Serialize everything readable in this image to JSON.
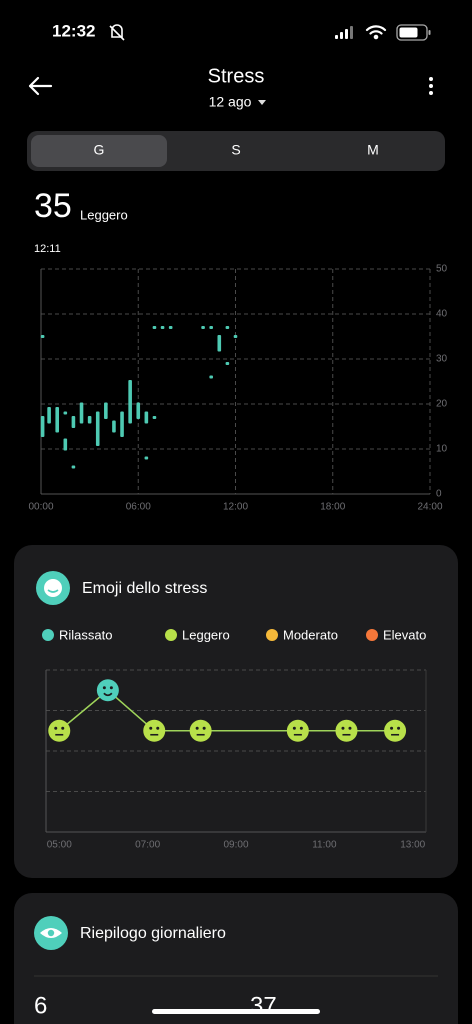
{
  "status_bar": {
    "time": "12:32"
  },
  "header": {
    "title": "Stress",
    "date": "12 ago"
  },
  "tabs": [
    "G",
    "S",
    "M"
  ],
  "current": {
    "value": 35,
    "level": "Leggero",
    "time": "12:11"
  },
  "chart_data": [
    {
      "type": "range_bar",
      "color": "#4ecab3",
      "grid": true,
      "x": [
        0.1,
        0.1,
        0.5,
        1.0,
        1.5,
        1.5,
        2.0,
        2.0,
        2.5,
        3.0,
        3.5,
        4.0,
        4.5,
        5.0,
        5.5,
        6.0,
        6.5,
        6.5,
        7.0,
        7.0,
        7.5,
        8.0,
        10.0,
        10.5,
        10.5,
        11.0,
        11.5,
        11.5,
        12.0
      ],
      "min": [
        35,
        13,
        16,
        14,
        10,
        18,
        6,
        15,
        16,
        16,
        11,
        17,
        14,
        13,
        16,
        17,
        16,
        8,
        17,
        37,
        37,
        37,
        37,
        37,
        26,
        32,
        37,
        29,
        35
      ],
      "max": [
        35,
        17,
        19,
        19,
        12,
        18,
        6,
        17,
        20,
        17,
        18,
        20,
        16,
        18,
        25,
        20,
        18,
        8,
        17,
        37,
        37,
        37,
        37,
        37,
        26,
        35,
        37,
        29,
        35
      ],
      "xlim": [
        0,
        24
      ],
      "xticks": [
        {
          "value": 0,
          "label": "00:00"
        },
        {
          "value": 6,
          "label": "06:00"
        },
        {
          "value": 12,
          "label": "12:00"
        },
        {
          "value": 18,
          "label": "18:00"
        },
        {
          "value": 24,
          "label": "24:00"
        }
      ],
      "ylim": [
        0,
        50
      ],
      "yticks": [
        0,
        10,
        20,
        30,
        40,
        50
      ]
    },
    {
      "type": "emoji_line",
      "title": "Emoji dello stress",
      "legend": [
        {
          "name": "Rilassato",
          "color": "#4fcfbb"
        },
        {
          "name": "Leggero",
          "color": "#b8e04a"
        },
        {
          "name": "Moderato",
          "color": "#f5b93a"
        },
        {
          "name": "Elevato",
          "color": "#f5773a"
        }
      ],
      "x": [
        5.0,
        6.1,
        7.15,
        8.2,
        10.4,
        11.5,
        12.6
      ],
      "values": [
        2.5,
        3.5,
        2.5,
        2.5,
        2.5,
        2.5,
        2.5
      ],
      "point_colors": [
        "#b8e04a",
        "#4fcfbb",
        "#b8e04a",
        "#b8e04a",
        "#b8e04a",
        "#b8e04a",
        "#b8e04a"
      ],
      "line_color": "#9fd45a",
      "xlim": [
        4.7,
        13.3
      ],
      "xticks": [
        {
          "value": 5,
          "label": "05:00"
        },
        {
          "value": 7,
          "label": "07:00"
        },
        {
          "value": 9,
          "label": "09:00"
        },
        {
          "value": 11,
          "label": "11:00"
        },
        {
          "value": 13,
          "label": "13:00"
        }
      ],
      "ylim": [
        0,
        4
      ],
      "yticks": [
        0,
        1,
        2,
        3,
        4
      ]
    }
  ],
  "summary": {
    "title": "Riepilogo giornaliero",
    "values": [
      6,
      37
    ]
  }
}
